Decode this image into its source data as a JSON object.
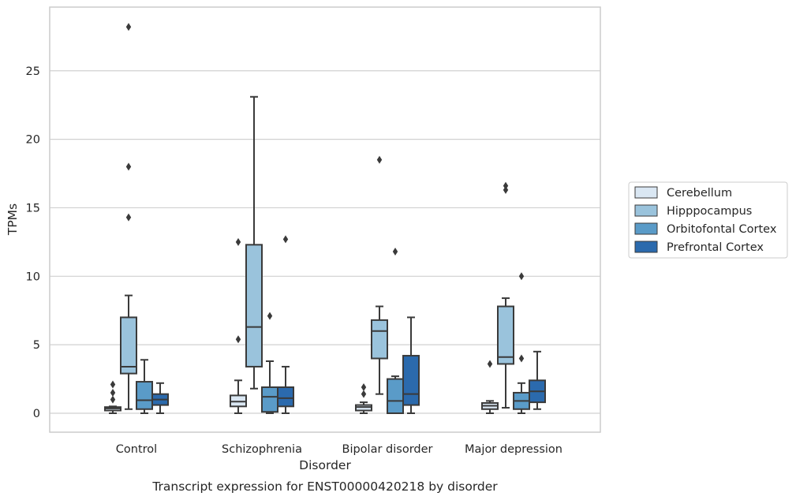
{
  "chart_data": {
    "type": "box",
    "title": "",
    "caption": "Transcript expression for ENST00000420218 by disorder",
    "xlabel": "Disorder",
    "ylabel": "TPMs",
    "ylim": [
      -1.4,
      29
    ],
    "yticks": [
      0,
      5,
      10,
      15,
      20,
      25
    ],
    "grid": "horizontal",
    "legend_position": "right",
    "categories": [
      "Control",
      "Schizophrenia",
      "Bipolar disorder",
      "Major depression"
    ],
    "series": [
      {
        "name": "Cerebellum",
        "color": "#dae7f3",
        "boxes": [
          {
            "whislo": 0.0,
            "q1": 0.2,
            "med": 0.35,
            "q3": 0.45,
            "whishi": 0.5,
            "fliers": [
              1.0,
              1.5,
              2.1
            ]
          },
          {
            "whislo": 0.0,
            "q1": 0.5,
            "med": 0.85,
            "q3": 1.3,
            "whishi": 2.4,
            "fliers": [
              5.4,
              12.5
            ]
          },
          {
            "whislo": 0.0,
            "q1": 0.2,
            "med": 0.45,
            "q3": 0.6,
            "whishi": 0.8,
            "fliers": [
              1.4,
              1.9
            ]
          },
          {
            "whislo": 0.0,
            "q1": 0.3,
            "med": 0.55,
            "q3": 0.75,
            "whishi": 0.9,
            "fliers": [
              3.6
            ]
          }
        ]
      },
      {
        "name": "Hipppocampus",
        "color": "#9ac3dc",
        "boxes": [
          {
            "whislo": 0.3,
            "q1": 2.9,
            "med": 3.4,
            "q3": 7.0,
            "whishi": 8.6,
            "fliers": [
              14.3,
              18.0,
              28.2
            ]
          },
          {
            "whislo": 1.8,
            "q1": 3.4,
            "med": 6.3,
            "q3": 12.3,
            "whishi": 23.1,
            "fliers": []
          },
          {
            "whislo": 1.4,
            "q1": 4.0,
            "med": 6.0,
            "q3": 6.8,
            "whishi": 7.8,
            "fliers": [
              18.5
            ]
          },
          {
            "whislo": 0.4,
            "q1": 3.6,
            "med": 4.1,
            "q3": 7.8,
            "whishi": 8.4,
            "fliers": [
              16.3,
              16.6
            ]
          }
        ]
      },
      {
        "name": "Orbitofontal Cortex",
        "color": "#5a9bc8",
        "boxes": [
          {
            "whislo": 0.0,
            "q1": 0.3,
            "med": 0.95,
            "q3": 2.3,
            "whishi": 3.9,
            "fliers": []
          },
          {
            "whislo": 0.0,
            "q1": 0.1,
            "med": 1.2,
            "q3": 1.9,
            "whishi": 3.8,
            "fliers": [
              7.1
            ]
          },
          {
            "whislo": 0.0,
            "q1": 0.0,
            "med": 0.9,
            "q3": 2.5,
            "whishi": 2.7,
            "fliers": [
              11.8
            ]
          },
          {
            "whislo": 0.0,
            "q1": 0.3,
            "med": 0.9,
            "q3": 1.5,
            "whishi": 2.2,
            "fliers": [
              4.0,
              10.0
            ]
          }
        ]
      },
      {
        "name": "Prefrontal Cortex",
        "color": "#2b6aad",
        "boxes": [
          {
            "whislo": 0.0,
            "q1": 0.6,
            "med": 1.0,
            "q3": 1.4,
            "whishi": 2.2,
            "fliers": []
          },
          {
            "whislo": 0.0,
            "q1": 0.5,
            "med": 1.1,
            "q3": 1.9,
            "whishi": 3.4,
            "fliers": [
              12.7
            ]
          },
          {
            "whislo": 0.0,
            "q1": 0.6,
            "med": 1.4,
            "q3": 4.2,
            "whishi": 7.0,
            "fliers": []
          },
          {
            "whislo": 0.3,
            "q1": 0.8,
            "med": 1.6,
            "q3": 2.4,
            "whishi": 4.5,
            "fliers": []
          }
        ]
      }
    ]
  }
}
